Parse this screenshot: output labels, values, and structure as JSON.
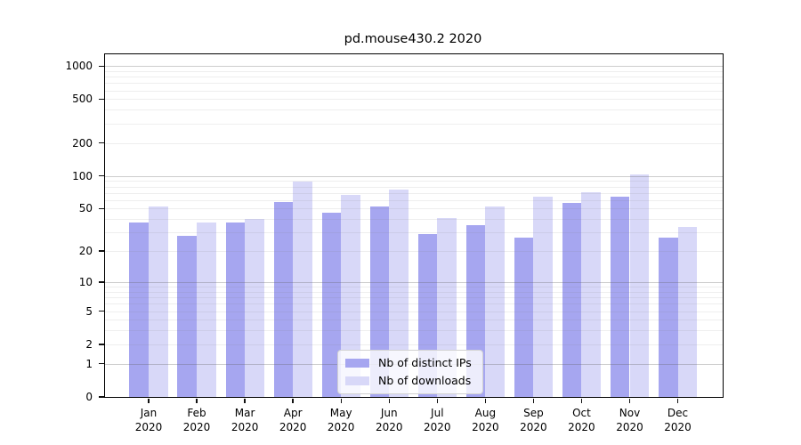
{
  "title": "pd.mouse430.2 2020",
  "chart_data": {
    "type": "bar",
    "title": "pd.mouse430.2 2020",
    "categories": [
      "Jan 2020",
      "Feb 2020",
      "Mar 2020",
      "Apr 2020",
      "May 2020",
      "Jun 2020",
      "Jul 2020",
      "Aug 2020",
      "Sep 2020",
      "Oct 2020",
      "Nov 2020",
      "Dec 2020"
    ],
    "series": [
      {
        "name": "Nb of distinct IPs",
        "color": "#a6a6f0",
        "values": [
          37,
          28,
          37,
          58,
          46,
          52,
          29,
          35,
          27,
          56,
          64,
          27
        ]
      },
      {
        "name": "Nb of downloads",
        "color": "#d8d8f8",
        "values": [
          52,
          37,
          40,
          89,
          67,
          75,
          41,
          52,
          64,
          71,
          103,
          34
        ]
      }
    ],
    "xlabel": "",
    "ylabel": "",
    "yscale": "log1p",
    "yticks": [
      0,
      1,
      2,
      5,
      10,
      20,
      50,
      100,
      200,
      500,
      1000
    ],
    "major_gridlines": [
      1,
      10,
      100,
      1000
    ],
    "ylim": [
      0,
      1280
    ],
    "grid": true,
    "legend_position": "lower center",
    "background_color": "#ffffff",
    "spine_color": "#000000"
  },
  "legend": {
    "items": [
      {
        "label": "Nb of distinct IPs",
        "color": "#a6a6f0"
      },
      {
        "label": "Nb of downloads",
        "color": "#d8d8f8"
      }
    ]
  }
}
